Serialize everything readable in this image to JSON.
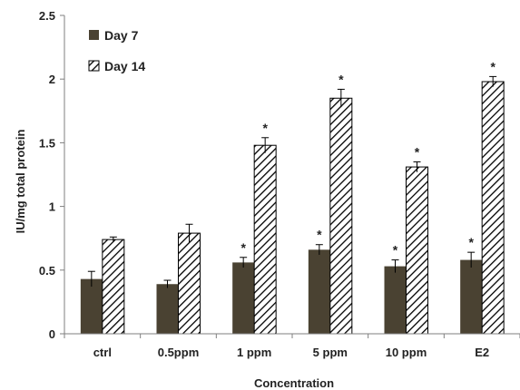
{
  "chart_data": {
    "type": "bar",
    "xlabel": "Concentration",
    "ylabel": "IU/mg total protein",
    "ylim": [
      0,
      2.5
    ],
    "yticks": [
      "0",
      "0.5",
      "1",
      "1.5",
      "2",
      "2.5"
    ],
    "categories": [
      "ctrl",
      "0.5ppm",
      "1 ppm",
      "5 ppm",
      "10 ppm",
      "E2"
    ],
    "grid": false,
    "legend_position": "top-left",
    "series": [
      {
        "name": "Day 7",
        "fill": "solid",
        "color": "#4a4232",
        "values": [
          0.43,
          0.39,
          0.56,
          0.66,
          0.53,
          0.58
        ],
        "errors": [
          0.06,
          0.03,
          0.04,
          0.04,
          0.05,
          0.06
        ],
        "significance": [
          "",
          "",
          "*",
          "*",
          "*",
          "*"
        ]
      },
      {
        "name": "Day 14",
        "fill": "diagonal-hatch",
        "color": "#000000",
        "values": [
          0.74,
          0.79,
          1.48,
          1.85,
          1.31,
          1.98
        ],
        "errors": [
          0.02,
          0.07,
          0.06,
          0.07,
          0.04,
          0.04
        ],
        "significance": [
          "",
          "",
          "*",
          "*",
          "*",
          "*"
        ]
      }
    ]
  }
}
